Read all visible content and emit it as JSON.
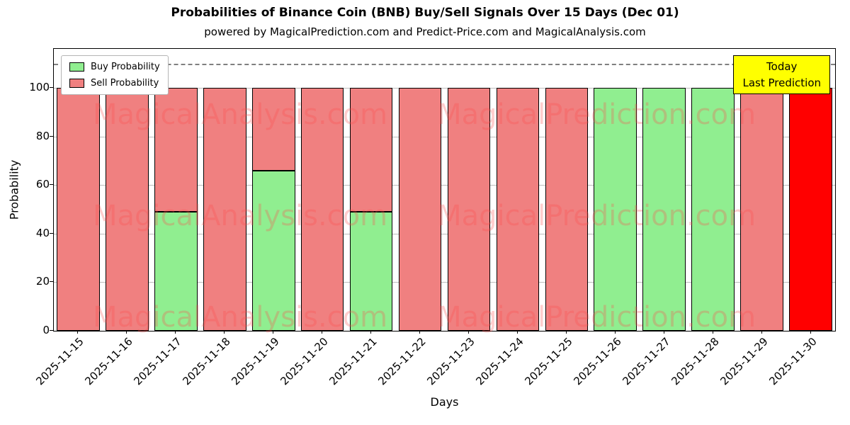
{
  "chart_data": {
    "type": "bar",
    "stacked": true,
    "title": "Probabilities of Binance Coin (BNB) Buy/Sell Signals Over 15 Days (Dec 01)",
    "subtitle": "powered by MagicalPrediction.com and Predict-Price.com and MagicalAnalysis.com",
    "xlabel": "Days",
    "ylabel": "Probability",
    "ylim": [
      0,
      116
    ],
    "yticks": [
      0,
      20,
      40,
      60,
      80,
      100
    ],
    "dashed_line_y": 110,
    "grid": true,
    "legend_position": "upper-left",
    "categories": [
      "2025-11-15",
      "2025-11-16",
      "2025-11-17",
      "2025-11-18",
      "2025-11-19",
      "2025-11-20",
      "2025-11-21",
      "2025-11-22",
      "2025-11-23",
      "2025-11-24",
      "2025-11-25",
      "2025-11-26",
      "2025-11-27",
      "2025-11-28",
      "2025-11-29",
      "2025-11-30"
    ],
    "series": [
      {
        "name": "Buy Probability",
        "color": "#90ee90",
        "values": [
          0,
          0,
          49,
          0,
          66,
          0,
          49,
          0,
          0,
          0,
          0,
          100,
          100,
          100,
          0,
          0
        ]
      },
      {
        "name": "Sell Probability",
        "color": "#f08080",
        "values": [
          100,
          100,
          51,
          100,
          34,
          100,
          51,
          100,
          100,
          100,
          100,
          0,
          0,
          0,
          100,
          100
        ]
      }
    ],
    "highlight": {
      "index": 15,
      "category": "2025-11-30",
      "color": "#ff0000"
    },
    "annotation": {
      "lines": [
        "Today",
        "Last Prediction"
      ],
      "bg": "#ffff00"
    },
    "watermarks": [
      "MagicalAnalysis.com",
      "MagicalPrediction.com"
    ]
  }
}
